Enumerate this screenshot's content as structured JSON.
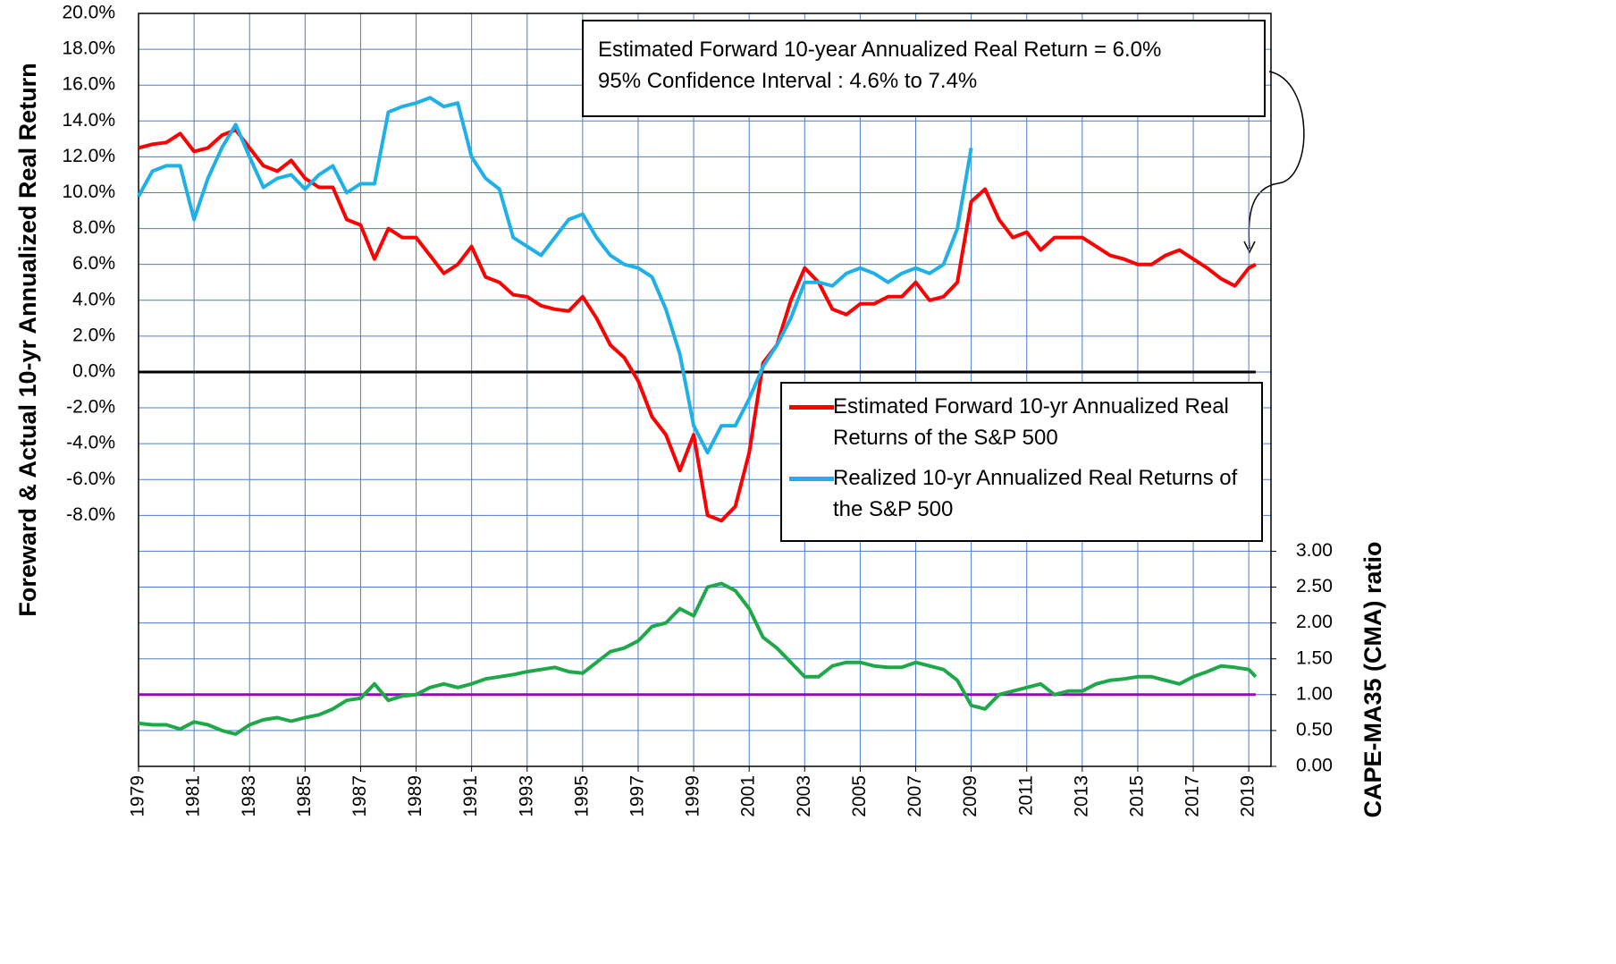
{
  "chart_data": {
    "type": "line",
    "ylabel": "Foreward & Actual 10-yr Annualized Real Return",
    "y2label": "CAPE-MA35 (CMA) ratio",
    "annotations": [
      "Estimated Forward 10-year Annualized Real Return = 6.0%",
      "95% Confidence Interval : 4.6% to 7.4%"
    ],
    "xlim": [
      1979,
      2019.8
    ],
    "xticks": [
      1979,
      1981,
      1983,
      1985,
      1987,
      1989,
      1991,
      1993,
      1995,
      1997,
      1999,
      2001,
      2003,
      2005,
      2007,
      2009,
      2011,
      2013,
      2015,
      2017,
      2019
    ],
    "ylim": [
      -22,
      20
    ],
    "yticks": [
      {
        "value": -8,
        "label": "-8.0%"
      },
      {
        "value": -6,
        "label": "-6.0%"
      },
      {
        "value": -4,
        "label": "-4.0%"
      },
      {
        "value": -2,
        "label": "-2.0%"
      },
      {
        "value": 0,
        "label": "0.0%"
      },
      {
        "value": 2,
        "label": "2.0%"
      },
      {
        "value": 4,
        "label": "4.0%"
      },
      {
        "value": 6,
        "label": "6.0%"
      },
      {
        "value": 8,
        "label": "8.0%"
      },
      {
        "value": 10,
        "label": "10.0%"
      },
      {
        "value": 12,
        "label": "12.0%"
      },
      {
        "value": 14,
        "label": "14.0%"
      },
      {
        "value": 16,
        "label": "16.0%"
      },
      {
        "value": 18,
        "label": "18.0%"
      },
      {
        "value": 20,
        "label": "20.0%"
      }
    ],
    "y2lim": [
      0,
      10.5
    ],
    "y2ticks": [
      {
        "value": 0,
        "label": "0.00"
      },
      {
        "value": 0.5,
        "label": "0.50"
      },
      {
        "value": 1,
        "label": "1.00"
      },
      {
        "value": 1.5,
        "label": "1.50"
      },
      {
        "value": 2,
        "label": "2.00"
      },
      {
        "value": 2.5,
        "label": "2.50"
      },
      {
        "value": 3,
        "label": "3.00"
      }
    ],
    "grid": true,
    "reference_lines": [
      {
        "value": 0,
        "color": "#000000"
      },
      {
        "value": 1,
        "axis": "y2",
        "color": "#9900cc"
      }
    ],
    "x": [
      1979,
      1979.5,
      1980,
      1980.5,
      1981,
      1981.5,
      1982,
      1982.5,
      1983,
      1983.5,
      1984,
      1984.5,
      1985,
      1985.5,
      1986,
      1986.5,
      1987,
      1987.5,
      1988,
      1988.5,
      1989,
      1989.5,
      1990,
      1990.5,
      1991,
      1991.5,
      1992,
      1992.5,
      1993,
      1993.5,
      1994,
      1994.5,
      1995,
      1995.5,
      1996,
      1996.5,
      1997,
      1997.5,
      1998,
      1998.5,
      1999,
      1999.5,
      2000,
      2000.5,
      2001,
      2001.5,
      2002,
      2002.5,
      2003,
      2003.5,
      2004,
      2004.5,
      2005,
      2005.5,
      2006,
      2006.5,
      2007,
      2007.5,
      2008,
      2008.5,
      2009,
      2009.5,
      2010,
      2010.5,
      2011,
      2011.5,
      2012,
      2012.5,
      2013,
      2013.5,
      2014,
      2014.5,
      2015,
      2015.5,
      2016,
      2016.5,
      2017,
      2017.5,
      2018,
      2018.5,
      2019,
      2019.25
    ],
    "series": [
      {
        "name": "Estimated Forward 10-yr Annualized Real Returns of the S&P 500",
        "color": "#ff0000",
        "values": [
          12.5,
          12.7,
          12.8,
          13.3,
          12.3,
          12.5,
          13.2,
          13.5,
          12.5,
          11.5,
          11.2,
          11.8,
          10.8,
          10.3,
          10.3,
          8.5,
          8.2,
          6.3,
          8.0,
          7.5,
          7.5,
          6.5,
          5.5,
          6.0,
          7.0,
          5.3,
          5.0,
          4.3,
          4.2,
          3.7,
          3.5,
          3.4,
          4.2,
          3.0,
          1.5,
          0.8,
          -0.5,
          -2.5,
          -3.5,
          -5.5,
          -3.5,
          -8.0,
          -8.3,
          -7.5,
          -4.5,
          0.5,
          1.5,
          4.0,
          5.8,
          5.0,
          3.5,
          3.2,
          3.8,
          3.8,
          4.2,
          4.2,
          5.0,
          4.0,
          4.2,
          5.0,
          9.5,
          10.2,
          8.5,
          7.5,
          7.8,
          6.8,
          7.5,
          7.5,
          7.5,
          7.0,
          6.5,
          6.3,
          6.0,
          6.0,
          6.5,
          6.8,
          6.3,
          5.8,
          5.2,
          4.8,
          5.8,
          6.0
        ]
      },
      {
        "name": "Realized 10-yr Annualized Real Returns of the S&P 500",
        "color": "#1fb0e8",
        "values": [
          9.8,
          11.2,
          11.5,
          11.5,
          8.5,
          10.8,
          12.5,
          13.8,
          12.0,
          10.3,
          10.8,
          11.0,
          10.2,
          11.0,
          11.5,
          10.0,
          10.5,
          10.5,
          14.5,
          14.8,
          15.0,
          15.3,
          14.8,
          15.0,
          12.0,
          10.8,
          10.2,
          7.5,
          7.0,
          6.5,
          7.5,
          8.5,
          8.8,
          7.5,
          6.5,
          6.0,
          5.8,
          5.3,
          3.5,
          1.0,
          -3.0,
          -4.5,
          -3.0,
          -3.0,
          -1.5,
          0.3,
          1.5,
          3.0,
          5.0,
          5.0,
          4.8,
          5.5,
          5.8,
          5.5,
          5.0,
          5.5,
          5.8,
          5.5,
          6.0,
          8.0,
          12.5,
          null,
          null,
          null,
          null,
          null,
          null,
          null,
          null,
          null,
          null,
          null,
          null,
          null,
          null,
          null,
          null,
          null,
          null,
          null,
          null,
          null
        ]
      },
      {
        "axis": "y2",
        "color": "#1fa84a",
        "values": [
          0.6,
          0.58,
          0.58,
          0.52,
          0.62,
          0.58,
          0.5,
          0.45,
          0.58,
          0.65,
          0.68,
          0.63,
          0.68,
          0.72,
          0.8,
          0.92,
          0.95,
          1.15,
          0.92,
          0.98,
          1.0,
          1.1,
          1.15,
          1.1,
          1.15,
          1.22,
          1.25,
          1.28,
          1.32,
          1.35,
          1.38,
          1.32,
          1.3,
          1.45,
          1.6,
          1.65,
          1.75,
          1.95,
          2.0,
          2.2,
          2.1,
          2.5,
          2.55,
          2.45,
          2.2,
          1.8,
          1.65,
          1.45,
          1.25,
          1.25,
          1.4,
          1.45,
          1.45,
          1.4,
          1.38,
          1.38,
          1.45,
          1.4,
          1.35,
          1.2,
          0.85,
          0.8,
          1.0,
          1.05,
          1.1,
          1.15,
          1.0,
          1.05,
          1.05,
          1.15,
          1.2,
          1.22,
          1.25,
          1.25,
          1.2,
          1.15,
          1.25,
          1.32,
          1.4,
          1.38,
          1.35,
          1.25
        ]
      }
    ]
  }
}
